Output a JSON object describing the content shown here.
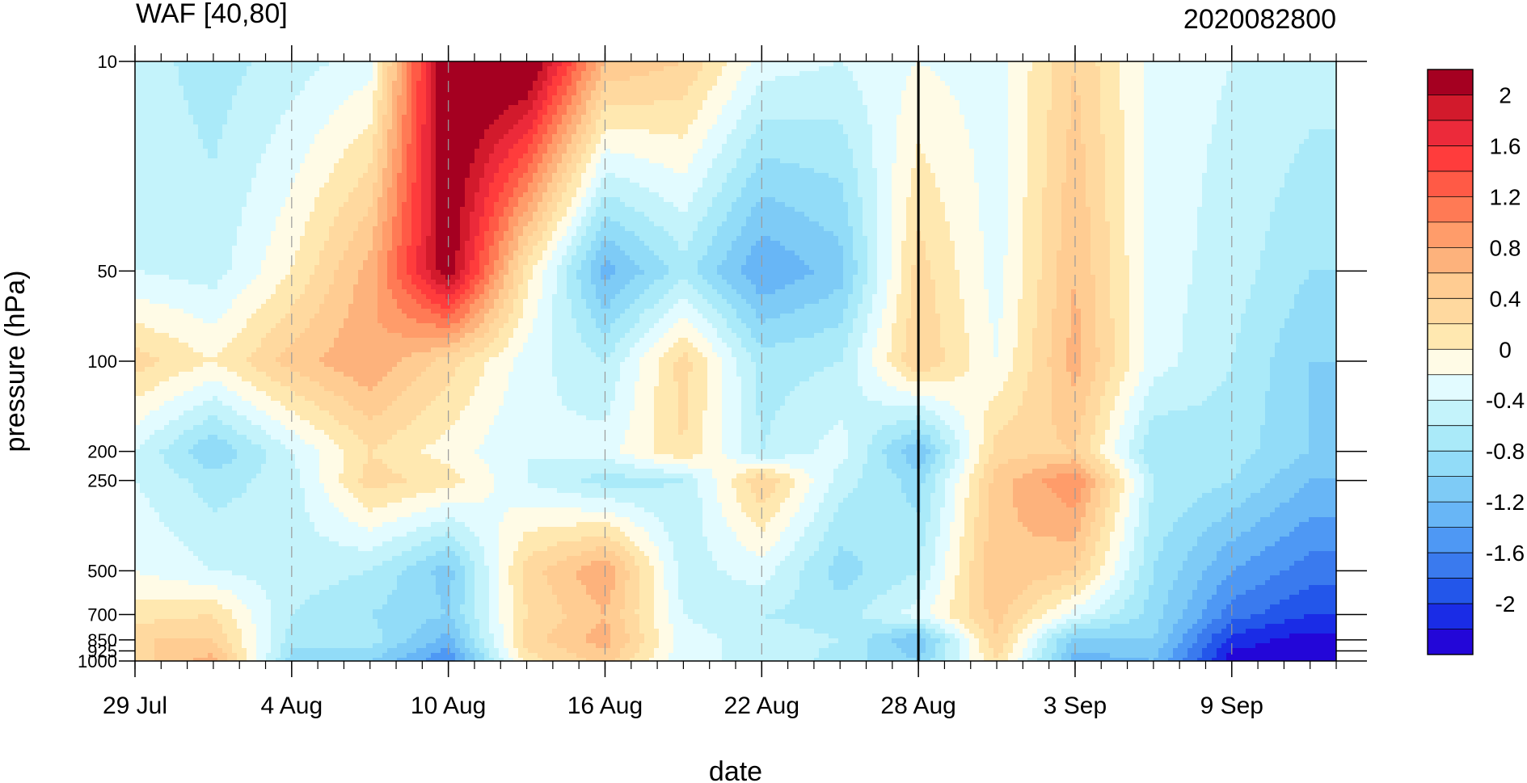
{
  "chart_data": {
    "type": "heatmap",
    "subtype": "filled-contour (time-pressure cross section)",
    "title": "WAF [40,80]",
    "run_label": "2020082800",
    "xlabel": "date",
    "ylabel": "pressure (hPa)",
    "x_range": [
      "2020-07-29",
      "2020-09-13"
    ],
    "x_ticks": [
      "29 Jul",
      "4 Aug",
      "10 Aug",
      "16 Aug",
      "22 Aug",
      "28 Aug",
      "3 Sep",
      "9 Sep"
    ],
    "y_scale": "log",
    "y_range": [
      1000,
      10
    ],
    "y_ticks": [
      10,
      50,
      100,
      200,
      250,
      500,
      700,
      850,
      925,
      1000
    ],
    "y_tick_labels": [
      "10",
      "50",
      "100",
      "200",
      "250",
      "500",
      "700",
      "850",
      "925",
      "1000"
    ],
    "vertical_marker": "28 Aug",
    "grid": "dashed vertical lines at labelled dates",
    "colorbar": {
      "labels": [
        "2",
        "1.6",
        "1.2",
        "0.8",
        "0.4",
        "0",
        "-0.4",
        "-0.8",
        "-1.2",
        "-1.6",
        "-2"
      ],
      "levels": [
        2.2,
        2.0,
        1.8,
        1.6,
        1.4,
        1.2,
        1.0,
        0.8,
        0.6,
        0.4,
        0.2,
        0.0,
        -0.2,
        -0.4,
        -0.6,
        -0.8,
        -1.0,
        -1.2,
        -1.4,
        -1.6,
        -1.8,
        -2.0,
        -2.2
      ],
      "colors": [
        "#a50021",
        "#d21a2c",
        "#ec2a3a",
        "#ff3c3c",
        "#ff5a46",
        "#ff7a55",
        "#ff9c6a",
        "#fdb27c",
        "#ffcc92",
        "#ffd99f",
        "#ffe8b0",
        "#fffbe6",
        "#e2fbff",
        "#c4f3fb",
        "#aaeaf9",
        "#92dcf8",
        "#7ecbf6",
        "#68b6f6",
        "#4e98f4",
        "#3a7aee",
        "#2356ea",
        "#1a2ce6",
        "#2306d8"
      ]
    },
    "grid_dates": [
      "29 Jul",
      "1 Aug",
      "4 Aug",
      "7 Aug",
      "10 Aug",
      "13 Aug",
      "16 Aug",
      "19 Aug",
      "22 Aug",
      "25 Aug",
      "28 Aug",
      "31 Aug",
      "3 Sep",
      "6 Sep",
      "9 Sep",
      "12 Sep"
    ],
    "grid_levels": [
      10,
      50,
      100,
      200,
      250,
      500,
      700,
      850,
      1000
    ],
    "values": [
      [
        -0.5,
        -0.7,
        -0.5,
        -0.3,
        2.4,
        2.4,
        0.6,
        0.4,
        -0.3,
        -0.4,
        -0.2,
        -0.3,
        0.4,
        -0.3,
        -0.4,
        -0.5
      ],
      [
        -0.4,
        -0.5,
        0.0,
        0.7,
        2.2,
        0.1,
        -1.3,
        -0.7,
        -1.4,
        -1.1,
        0.3,
        -0.3,
        0.6,
        -0.3,
        -0.5,
        -0.8
      ],
      [
        0.3,
        0.0,
        0.5,
        0.8,
        0.3,
        -0.3,
        -0.6,
        0.3,
        -0.7,
        -0.6,
        0.4,
        -0.2,
        0.7,
        -0.3,
        -0.6,
        -1.0
      ],
      [
        -0.4,
        -1.0,
        -0.4,
        0.2,
        -0.1,
        -0.4,
        -0.3,
        0.2,
        -0.6,
        -0.3,
        -1.2,
        0.3,
        0.4,
        -0.8,
        -0.7,
        -1.0
      ],
      [
        -0.4,
        -0.7,
        -0.5,
        0.3,
        0.1,
        -0.4,
        -0.7,
        -0.6,
        0.4,
        -0.5,
        -0.9,
        0.5,
        1.0,
        -0.6,
        -0.8,
        -1.2
      ],
      [
        -0.2,
        -0.4,
        -0.5,
        -0.6,
        -1.1,
        0.3,
        0.8,
        -0.5,
        -0.3,
        -0.9,
        -0.6,
        0.6,
        0.4,
        -0.8,
        -1.4,
        -1.7
      ],
      [
        0.1,
        0.2,
        -0.6,
        -0.8,
        -1.0,
        0.2,
        0.6,
        -0.4,
        -0.6,
        -0.7,
        -0.3,
        0.5,
        -0.3,
        -0.9,
        -1.7,
        -2.0
      ],
      [
        0.4,
        0.4,
        -0.7,
        -0.7,
        -1.3,
        0.3,
        0.7,
        -0.3,
        -0.5,
        -0.6,
        -1.2,
        0.4,
        -1.1,
        -1.0,
        -2.1,
        -2.3
      ],
      [
        0.3,
        0.7,
        -0.9,
        -1.0,
        -1.6,
        0.1,
        0.5,
        -0.4,
        -0.4,
        -0.7,
        -1.0,
        0.2,
        -1.3,
        -1.2,
        -2.3,
        -2.3
      ]
    ]
  }
}
